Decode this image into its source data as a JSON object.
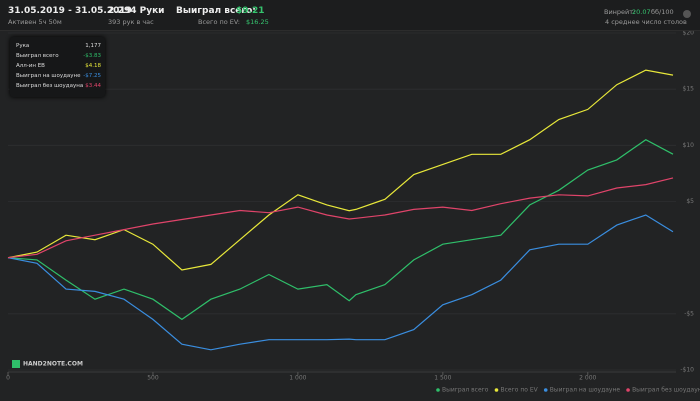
{
  "header": {
    "date_range": "31.05.2019 - 31.05.2019",
    "active": "Активен 5ч 50м",
    "hands": "2.294 Руки",
    "hands_per_hour": "393 рук в час",
    "won_label": "Выиграл всего:",
    "won_value": "$9.21",
    "ev_label": "Всего по EV:",
    "ev_value": "$16.25",
    "winrate_label": "Винрейт:",
    "winrate_value": "20.07",
    "winrate_unit": "бб/100",
    "tables": "4 среднее число столов"
  },
  "tooltip": {
    "rows": [
      [
        "Рука",
        "1,177"
      ],
      [
        "Выиграл всего",
        "-$3.83"
      ],
      [
        "Алл-ин EВ",
        "$4.18"
      ],
      [
        "Выиграл на шоудауне",
        "-$7.25"
      ],
      [
        "Выиграл без шоудауна",
        "$3.44"
      ]
    ]
  },
  "logo": "HAND2NOTE.COM",
  "chart_data": {
    "type": "line",
    "x": [
      0,
      100,
      200,
      300,
      400,
      500,
      600,
      700,
      800,
      900,
      1000,
      1100,
      1177,
      1200,
      1300,
      1400,
      1500,
      1600,
      1700,
      1800,
      1900,
      2000,
      2100,
      2200,
      2294
    ],
    "series": [
      {
        "name": "Выиграл всего",
        "color": "#2fbf6a",
        "values": [
          0,
          -0.2,
          -2,
          -3.7,
          -2.8,
          -3.7,
          -5.5,
          -3.7,
          -2.8,
          -1.5,
          -2.8,
          -2.4,
          -3.83,
          -3.3,
          -2.4,
          -0.2,
          1.2,
          1.6,
          2.0,
          4.7,
          6.0,
          7.8,
          8.7,
          10.5,
          9.21
        ]
      },
      {
        "name": "Всего по EV",
        "color": "#e8e83a",
        "values": [
          0,
          0.5,
          2.0,
          1.6,
          2.5,
          1.2,
          -1.1,
          -0.6,
          1.6,
          3.8,
          5.6,
          4.7,
          4.18,
          4.3,
          5.2,
          7.4,
          8.3,
          9.2,
          9.2,
          10.5,
          12.3,
          13.2,
          15.4,
          16.7,
          16.25
        ]
      },
      {
        "name": "Выиграл на шоудауне",
        "color": "#3a8ee0",
        "values": [
          0,
          -0.5,
          -2.8,
          -3.0,
          -3.7,
          -5.5,
          -7.7,
          -8.2,
          -7.7,
          -7.3,
          -7.3,
          -7.3,
          -7.25,
          -7.3,
          -7.3,
          -6.4,
          -4.2,
          -3.3,
          -2.0,
          0.7,
          1.2,
          1.2,
          2.9,
          3.8,
          2.3
        ]
      },
      {
        "name": "Выиграл без шоудауна",
        "color": "#e0446a",
        "values": [
          0,
          0.3,
          1.5,
          2.0,
          2.5,
          3.0,
          3.4,
          3.8,
          4.2,
          4.0,
          4.5,
          3.8,
          3.44,
          3.5,
          3.8,
          4.3,
          4.5,
          4.2,
          4.8,
          5.3,
          5.6,
          5.5,
          6.2,
          6.5,
          7.1
        ]
      }
    ],
    "xlim": [
      0,
      2294
    ],
    "ylim": [
      -10,
      20
    ],
    "xticks": [
      0,
      500,
      {
        "value": 1000,
        "label": "1 000"
      },
      {
        "value": 1500,
        "label": "1 500"
      },
      {
        "value": 2000,
        "label": "2 000"
      }
    ],
    "yticks": [
      {
        "value": -10,
        "label": "-$10"
      },
      {
        "value": -5,
        "label": "-$5"
      },
      {
        "value": 5,
        "label": "$5"
      },
      {
        "value": 10,
        "label": "$10"
      },
      {
        "value": 15,
        "label": "$15"
      },
      {
        "value": 20,
        "label": "$20"
      }
    ],
    "grid": true
  }
}
